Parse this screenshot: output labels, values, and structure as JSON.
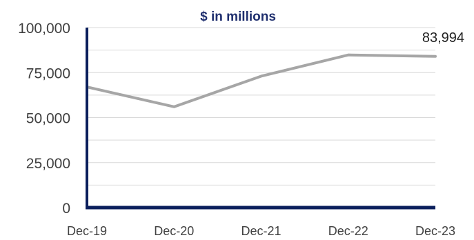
{
  "colors": {
    "title": "#1f2f6e",
    "axis": "#0b1f5c",
    "line": "#a6a6a6",
    "grid": "#d9d9d9",
    "tick_text": "#404040"
  },
  "chart_data": {
    "type": "line",
    "title": "$ in millions",
    "xlabel": "",
    "ylabel": "",
    "categories": [
      "Dec-19",
      "Dec-20",
      "Dec-21",
      "Dec-22",
      "Dec-23"
    ],
    "series": [
      {
        "values": [
          67000,
          56000,
          73000,
          84800,
          83994
        ]
      }
    ],
    "ylim": [
      0,
      100000
    ],
    "yticks": [
      0,
      25000,
      50000,
      75000,
      100000
    ],
    "ytick_labels": [
      "0",
      "25,000",
      "50,000",
      "75,000",
      "100,000"
    ],
    "grid": true,
    "legend": "none",
    "data_labels": [
      {
        "category": "Dec-23",
        "text": "83,994"
      }
    ]
  }
}
